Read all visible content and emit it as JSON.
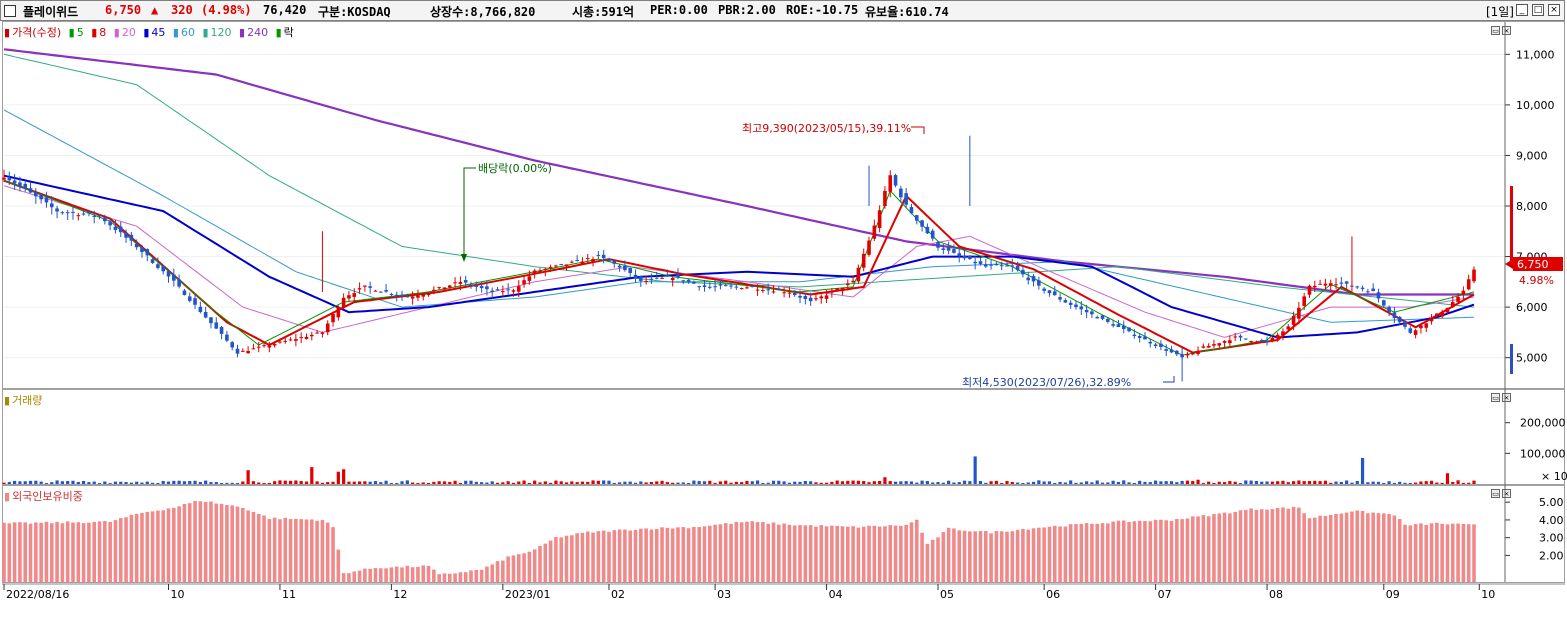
{
  "header": {
    "stock_name": "플레이위드",
    "price": "6,750",
    "change_arrow": "▲",
    "change": "320",
    "change_pct": "(4.98%)",
    "volume": "76,420",
    "market": "구분:KOSDAQ",
    "shares": "상장수:8,766,820",
    "market_cap": "시총:591억",
    "per": "PER:0.00",
    "pbr": "PBR:2.00",
    "roe": "ROE:-10.75",
    "reserve": "유보율:610.74",
    "period": "[1일]",
    "buttons": [
      "_",
      "□",
      "×"
    ]
  },
  "price_panel": {
    "legend": [
      {
        "label": "가격(수정)",
        "color": "#cc0000"
      },
      {
        "label": "5",
        "color": "#009900"
      },
      {
        "label": "8",
        "color": "#dd0000"
      },
      {
        "label": "20",
        "color": "#cc66cc"
      },
      {
        "label": "45",
        "color": "#0000cc"
      },
      {
        "label": "60",
        "color": "#3399cc"
      },
      {
        "label": "120",
        "color": "#33aa88"
      },
      {
        "label": "240",
        "color": "#8833bb"
      },
      {
        "label": "락",
        "color": "#009900"
      }
    ],
    "y_ticks": [
      "11,000",
      "10,000",
      "9,000",
      "8,000",
      "7,000",
      "6,000",
      "5,000"
    ],
    "current_price_label": "6,750",
    "current_pct_label": "4.98%",
    "annotations": {
      "high": "최고9,390(2023/05/15),39.11%",
      "low": "최저4,530(2023/07/26),32.89%",
      "dividend": "배당락(0.00%)"
    }
  },
  "volume_panel": {
    "legend": "거래량",
    "y_ticks": [
      "200,000",
      "100,000"
    ],
    "multiplier": "× 10"
  },
  "foreign_panel": {
    "legend": "외국인보유비중",
    "y_ticks": [
      "5.00",
      "4.00",
      "3.00",
      "2.00"
    ]
  },
  "x_axis": {
    "labels": [
      "2022/08/16",
      "10",
      "11",
      "12",
      "2023/01",
      "02",
      "03",
      "04",
      "05",
      "06",
      "07",
      "08",
      "09",
      "10"
    ]
  },
  "chart_data": {
    "type": "candlestick",
    "series_anchors": {
      "close": [
        [
          0,
          8600
        ],
        [
          10,
          7900
        ],
        [
          18,
          7800
        ],
        [
          25,
          7200
        ],
        [
          32,
          6500
        ],
        [
          38,
          5800
        ],
        [
          44,
          5100
        ],
        [
          48,
          5200
        ],
        [
          52,
          5300
        ],
        [
          56,
          5400
        ],
        [
          60,
          5500
        ],
        [
          64,
          6200
        ],
        [
          68,
          6400
        ],
        [
          72,
          6300
        ],
        [
          76,
          6200
        ],
        [
          80,
          6300
        ],
        [
          86,
          6500
        ],
        [
          92,
          6300
        ],
        [
          96,
          6350
        ],
        [
          100,
          6700
        ],
        [
          104,
          6800
        ],
        [
          108,
          6900
        ],
        [
          112,
          7000
        ],
        [
          116,
          6800
        ],
        [
          120,
          6500
        ],
        [
          126,
          6600
        ],
        [
          132,
          6400
        ],
        [
          140,
          6400
        ],
        [
          148,
          6300
        ],
        [
          152,
          6100
        ],
        [
          156,
          6300
        ],
        [
          160,
          6500
        ],
        [
          164,
          7600
        ],
        [
          167,
          8600
        ],
        [
          170,
          8000
        ],
        [
          173,
          7600
        ],
        [
          176,
          7200
        ],
        [
          180,
          7000
        ],
        [
          185,
          6800
        ],
        [
          190,
          6800
        ],
        [
          195,
          6400
        ],
        [
          200,
          6100
        ],
        [
          206,
          5800
        ],
        [
          212,
          5500
        ],
        [
          218,
          5200
        ],
        [
          222,
          5000
        ],
        [
          226,
          5200
        ],
        [
          232,
          5400
        ],
        [
          238,
          5300
        ],
        [
          242,
          5600
        ],
        [
          246,
          6400
        ],
        [
          250,
          6500
        ],
        [
          255,
          6400
        ],
        [
          258,
          6300
        ],
        [
          262,
          5800
        ],
        [
          265,
          5500
        ],
        [
          268,
          5700
        ],
        [
          272,
          6000
        ],
        [
          275,
          6300
        ],
        [
          277,
          6750
        ]
      ],
      "ma5": [
        [
          0,
          8500
        ],
        [
          20,
          7700
        ],
        [
          40,
          5900
        ],
        [
          48,
          5250
        ],
        [
          64,
          6100
        ],
        [
          80,
          6300
        ],
        [
          100,
          6700
        ],
        [
          112,
          6950
        ],
        [
          126,
          6600
        ],
        [
          150,
          6300
        ],
        [
          160,
          6400
        ],
        [
          167,
          8300
        ],
        [
          176,
          7300
        ],
        [
          190,
          6800
        ],
        [
          206,
          5900
        ],
        [
          222,
          5050
        ],
        [
          238,
          5350
        ],
        [
          250,
          6450
        ],
        [
          262,
          5900
        ],
        [
          277,
          6300
        ]
      ],
      "ma8": [
        [
          0,
          8500
        ],
        [
          20,
          7750
        ],
        [
          42,
          5700
        ],
        [
          50,
          5250
        ],
        [
          66,
          6100
        ],
        [
          82,
          6300
        ],
        [
          102,
          6700
        ],
        [
          114,
          6950
        ],
        [
          128,
          6650
        ],
        [
          152,
          6250
        ],
        [
          162,
          6400
        ],
        [
          170,
          8200
        ],
        [
          180,
          7200
        ],
        [
          194,
          6750
        ],
        [
          210,
          5850
        ],
        [
          224,
          5100
        ],
        [
          240,
          5350
        ],
        [
          252,
          6400
        ],
        [
          266,
          5600
        ],
        [
          277,
          6250
        ]
      ],
      "ma20": [
        [
          0,
          8400
        ],
        [
          25,
          7600
        ],
        [
          45,
          6000
        ],
        [
          60,
          5500
        ],
        [
          80,
          6000
        ],
        [
          100,
          6500
        ],
        [
          118,
          6800
        ],
        [
          140,
          6500
        ],
        [
          160,
          6200
        ],
        [
          172,
          7200
        ],
        [
          182,
          7400
        ],
        [
          195,
          6800
        ],
        [
          215,
          5900
        ],
        [
          230,
          5400
        ],
        [
          250,
          6000
        ],
        [
          265,
          6000
        ],
        [
          277,
          6200
        ]
      ],
      "ma45": [
        [
          0,
          8600
        ],
        [
          30,
          7900
        ],
        [
          50,
          6600
        ],
        [
          65,
          5900
        ],
        [
          80,
          6000
        ],
        [
          100,
          6300
        ],
        [
          120,
          6600
        ],
        [
          140,
          6700
        ],
        [
          160,
          6600
        ],
        [
          175,
          7000
        ],
        [
          190,
          7000
        ],
        [
          205,
          6800
        ],
        [
          220,
          6000
        ],
        [
          240,
          5400
        ],
        [
          255,
          5500
        ],
        [
          270,
          5800
        ],
        [
          277,
          6050
        ]
      ],
      "ma60": [
        [
          0,
          9900
        ],
        [
          30,
          8200
        ],
        [
          55,
          6700
        ],
        [
          75,
          6000
        ],
        [
          100,
          6200
        ],
        [
          120,
          6500
        ],
        [
          150,
          6500
        ],
        [
          175,
          6800
        ],
        [
          200,
          6900
        ],
        [
          225,
          6300
        ],
        [
          250,
          5700
        ],
        [
          277,
          5800
        ]
      ],
      "ma120": [
        [
          0,
          11000
        ],
        [
          25,
          10400
        ],
        [
          50,
          8600
        ],
        [
          75,
          7200
        ],
        [
          100,
          6800
        ],
        [
          125,
          6500
        ],
        [
          150,
          6400
        ],
        [
          180,
          6600
        ],
        [
          210,
          6800
        ],
        [
          240,
          6400
        ],
        [
          277,
          6000
        ]
      ],
      "ma240": [
        [
          0,
          11100
        ],
        [
          40,
          10600
        ],
        [
          70,
          9700
        ],
        [
          100,
          8900
        ],
        [
          140,
          8000
        ],
        [
          170,
          7300
        ],
        [
          200,
          6900
        ],
        [
          230,
          6600
        ],
        [
          255,
          6250
        ],
        [
          277,
          6250
        ]
      ],
      "volume_spikes": [
        [
          46,
          45000
        ],
        [
          58,
          55000
        ],
        [
          63,
          40000
        ],
        [
          64,
          48000
        ],
        [
          166,
          22000
        ],
        [
          183,
          90000
        ],
        [
          222,
          10000
        ],
        [
          225,
          14000
        ],
        [
          256,
          85000
        ],
        [
          272,
          35000
        ],
        [
          274,
          12000
        ],
        [
          276,
          4000
        ]
      ],
      "foreign_pct": [
        [
          0,
          3.8
        ],
        [
          20,
          3.9
        ],
        [
          26,
          4.4
        ],
        [
          32,
          4.7
        ],
        [
          37,
          5.1
        ],
        [
          45,
          4.7
        ],
        [
          50,
          4.1
        ],
        [
          60,
          4.0
        ],
        [
          62,
          3.6
        ],
        [
          64,
          1.0
        ],
        [
          70,
          1.3
        ],
        [
          80,
          1.4
        ],
        [
          82,
          0.9
        ],
        [
          90,
          1.2
        ],
        [
          95,
          1.9
        ],
        [
          100,
          2.3
        ],
        [
          104,
          3.0
        ],
        [
          110,
          3.3
        ],
        [
          120,
          3.5
        ],
        [
          130,
          3.6
        ],
        [
          140,
          3.9
        ],
        [
          150,
          3.7
        ],
        [
          160,
          3.6
        ],
        [
          170,
          3.7
        ],
        [
          172,
          4.0
        ],
        [
          174,
          2.6
        ],
        [
          178,
          3.5
        ],
        [
          186,
          3.3
        ],
        [
          196,
          3.6
        ],
        [
          210,
          3.9
        ],
        [
          220,
          4.0
        ],
        [
          228,
          4.3
        ],
        [
          235,
          4.6
        ],
        [
          244,
          4.7
        ],
        [
          246,
          4.1
        ],
        [
          254,
          4.5
        ],
        [
          262,
          4.3
        ],
        [
          264,
          3.7
        ],
        [
          270,
          3.8
        ],
        [
          277,
          3.7
        ]
      ]
    },
    "n_bars": 278,
    "y_range": [
      4400,
      11600
    ],
    "volume_range": [
      0,
      300000
    ],
    "foreign_range": [
      0.5,
      5.8
    ]
  }
}
